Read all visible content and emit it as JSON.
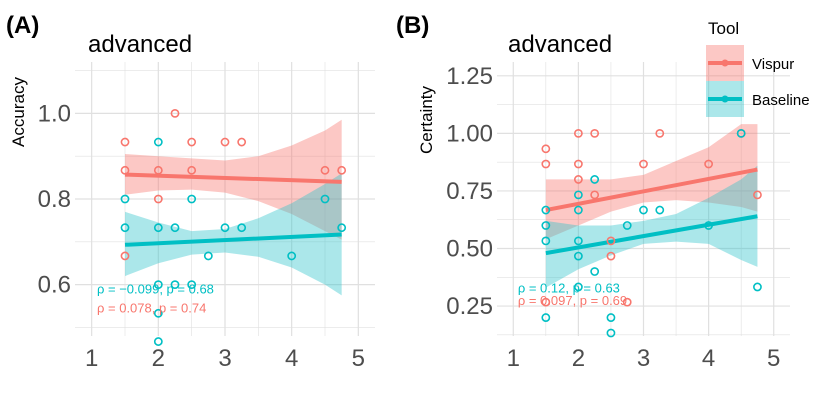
{
  "colors": {
    "vispur": "#F8766D",
    "baseline": "#00BFC4",
    "vispur_band": "#F8766D",
    "baseline_band": "#2CC3CB",
    "grid": "#E0E0E0",
    "tick": "#4D4D4D"
  },
  "legend": {
    "title": "Tool",
    "placement": "top-right",
    "items": [
      {
        "label": "Vispur",
        "color": "#F8766D"
      },
      {
        "label": "Baseline",
        "color": "#00BFC4"
      }
    ]
  },
  "chart_data": [
    {
      "type": "scatter",
      "panel_label": "(A)",
      "title": "advanced",
      "xlabel": "",
      "ylabel": "Accuracy",
      "xlim": [
        0.75,
        5.25
      ],
      "ylim": [
        0.48,
        1.12
      ],
      "xticks": [
        1,
        2,
        3,
        4,
        5
      ],
      "yticks": [
        0.6,
        0.8,
        1.0
      ],
      "ytick_labels": [
        "0.6",
        "0.8",
        "1.0"
      ],
      "grid": true,
      "annotations": [
        {
          "text": "ρ = −0.099, p = 0.68",
          "series": "Baseline",
          "x": 1.5,
          "y": 0.579
        },
        {
          "text": "ρ = 0.078, p = 0.74",
          "series": "Vispur",
          "x": 1.5,
          "y": 0.535
        }
      ],
      "series": [
        {
          "name": "Vispur",
          "points": [
            [
              1.5,
              0.933
            ],
            [
              1.5,
              0.867
            ],
            [
              1.5,
              0.667
            ],
            [
              2,
              0.867
            ],
            [
              2,
              0.8
            ],
            [
              2.25,
              1.0
            ],
            [
              2.5,
              0.933
            ],
            [
              2.5,
              0.867
            ],
            [
              3,
              0.933
            ],
            [
              3.25,
              0.933
            ],
            [
              4.5,
              0.867
            ],
            [
              4.75,
              0.867
            ]
          ],
          "fit": [
            [
              1.5,
              0.857
            ],
            [
              4.75,
              0.84
            ]
          ],
          "band": {
            "x": [
              1.5,
              2,
              2.5,
              3,
              3.5,
              4,
              4.5,
              4.75
            ],
            "lower": [
              0.81,
              0.82,
              0.822,
              0.815,
              0.795,
              0.765,
              0.725,
              0.705
            ],
            "upper": [
              0.905,
              0.9,
              0.895,
              0.89,
              0.9,
              0.925,
              0.96,
              0.985
            ]
          }
        },
        {
          "name": "Baseline",
          "points": [
            [
              1.5,
              0.8
            ],
            [
              1.5,
              0.733
            ],
            [
              2,
              0.933
            ],
            [
              2,
              0.733
            ],
            [
              2,
              0.6
            ],
            [
              2,
              0.533
            ],
            [
              2,
              0.467
            ],
            [
              2.25,
              0.733
            ],
            [
              2.25,
              0.6
            ],
            [
              2.5,
              0.8
            ],
            [
              2.5,
              0.6
            ],
            [
              2.75,
              0.667
            ],
            [
              3,
              0.733
            ],
            [
              3.25,
              0.733
            ],
            [
              4,
              0.667
            ],
            [
              4.5,
              0.8
            ],
            [
              4.75,
              0.733
            ]
          ],
          "fit": [
            [
              1.5,
              0.693
            ],
            [
              4.75,
              0.717
            ]
          ],
          "band": {
            "x": [
              1.5,
              2,
              2.5,
              3,
              3.5,
              4,
              4.5,
              4.75
            ],
            "lower": [
              0.62,
              0.65,
              0.67,
              0.675,
              0.665,
              0.64,
              0.6,
              0.575
            ],
            "upper": [
              0.77,
              0.745,
              0.725,
              0.73,
              0.755,
              0.79,
              0.835,
              0.86
            ]
          }
        }
      ]
    },
    {
      "type": "scatter",
      "panel_label": "(B)",
      "title": "advanced",
      "xlabel": "",
      "ylabel": "Certainty",
      "xlim": [
        0.75,
        5.25
      ],
      "ylim": [
        0.12,
        1.31
      ],
      "xticks": [
        1,
        2,
        3,
        4,
        5
      ],
      "yticks": [
        0.25,
        0.5,
        0.75,
        1.0,
        1.25
      ],
      "ytick_labels": [
        "0.25",
        "0.50",
        "0.75",
        "1.00",
        "1.25"
      ],
      "grid": true,
      "annotations": [
        {
          "text": "ρ = 0.12, p = 0.63",
          "series": "Baseline",
          "x": 1.5,
          "y": 0.31
        },
        {
          "text": "ρ = 0.097, p = 0.69",
          "series": "Vispur",
          "x": 1.5,
          "y": 0.255
        }
      ],
      "series": [
        {
          "name": "Vispur",
          "points": [
            [
              1.5,
              0.933
            ],
            [
              1.5,
              0.867
            ],
            [
              1.5,
              0.267
            ],
            [
              2,
              1.0
            ],
            [
              2,
              0.867
            ],
            [
              2,
              0.8
            ],
            [
              2.25,
              1.0
            ],
            [
              2.25,
              0.733
            ],
            [
              2.5,
              0.533
            ],
            [
              2.5,
              0.467
            ],
            [
              2.75,
              0.267
            ],
            [
              3,
              0.867
            ],
            [
              3.25,
              1.0
            ],
            [
              4,
              0.867
            ],
            [
              4.5,
              1.0
            ],
            [
              4.75,
              0.733
            ]
          ],
          "fit": [
            [
              1.5,
              0.667
            ],
            [
              4.75,
              0.843
            ]
          ],
          "band": {
            "x": [
              1.5,
              2,
              2.5,
              3,
              3.5,
              4,
              4.5,
              4.75
            ],
            "lower": [
              0.54,
              0.6,
              0.66,
              0.7,
              0.71,
              0.7,
              0.68,
              0.66
            ],
            "upper": [
              0.8,
              0.8,
              0.8,
              0.82,
              0.88,
              0.94,
              1.04,
              1.04
            ]
          }
        },
        {
          "name": "Baseline",
          "points": [
            [
              1.5,
              0.667
            ],
            [
              1.5,
              0.6
            ],
            [
              1.5,
              0.533
            ],
            [
              1.5,
              0.2
            ],
            [
              2,
              0.733
            ],
            [
              2,
              0.667
            ],
            [
              2,
              0.533
            ],
            [
              2,
              0.467
            ],
            [
              2,
              0.333
            ],
            [
              2.25,
              0.8
            ],
            [
              2.25,
              0.4
            ],
            [
              2.5,
              0.2
            ],
            [
              2.5,
              0.133
            ],
            [
              2.75,
              0.6
            ],
            [
              3,
              0.667
            ],
            [
              3.25,
              0.667
            ],
            [
              4,
              0.6
            ],
            [
              4.5,
              1.0
            ],
            [
              4.75,
              0.333
            ]
          ],
          "fit": [
            [
              1.5,
              0.48
            ],
            [
              4.75,
              0.64
            ]
          ],
          "band": {
            "x": [
              1.5,
              2,
              2.5,
              3,
              3.5,
              4,
              4.5,
              4.75
            ],
            "lower": [
              0.33,
              0.41,
              0.47,
              0.52,
              0.53,
              0.52,
              0.45,
              0.42
            ],
            "upper": [
              0.62,
              0.6,
              0.6,
              0.62,
              0.65,
              0.72,
              0.8,
              0.86
            ]
          }
        }
      ]
    }
  ]
}
